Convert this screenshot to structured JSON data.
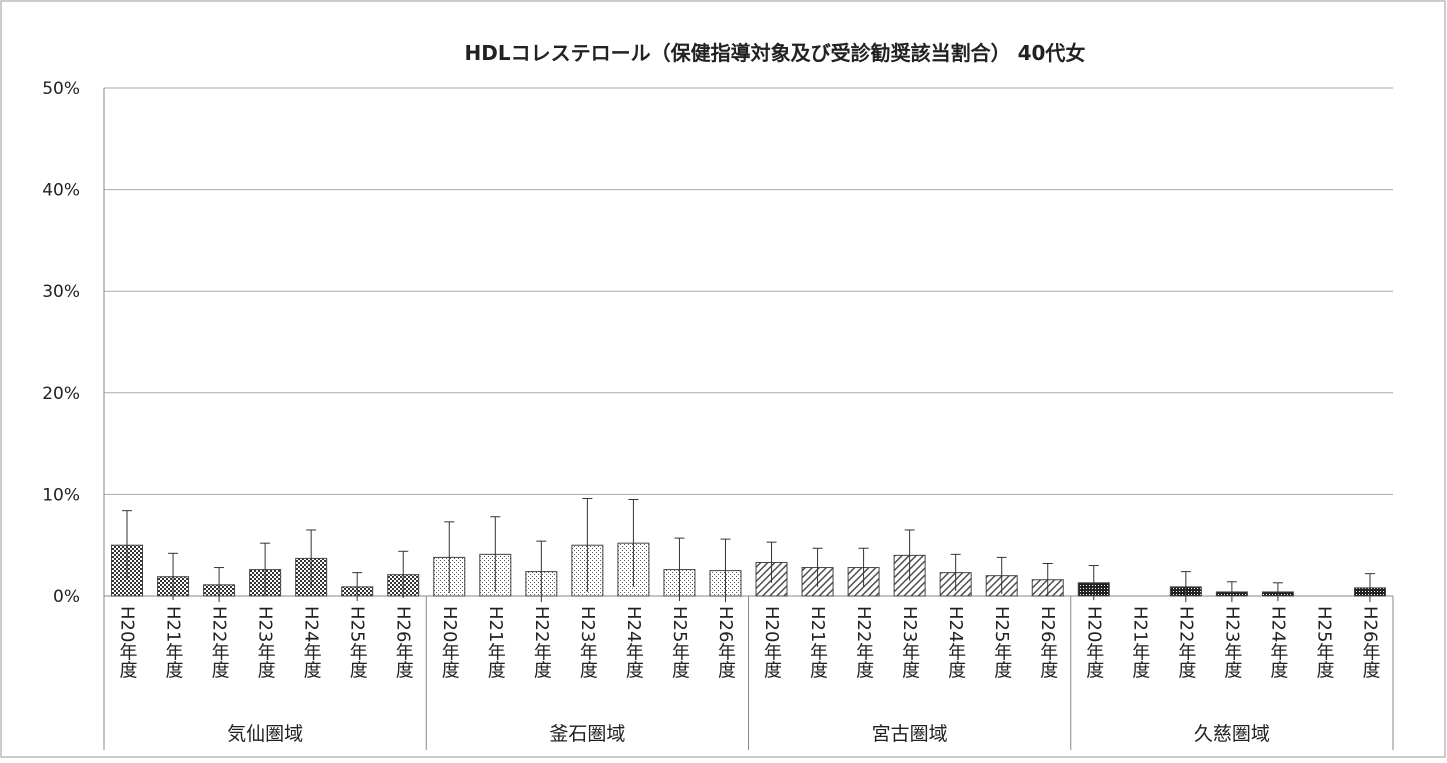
{
  "chart_data": {
    "type": "bar",
    "title": "HDLコレステロール（保健指導対象及び受診勧奨該当割合） 40代女",
    "groups": [
      "気仙圏域",
      "釜石圏域",
      "宮古圏域",
      "久慈圏域"
    ],
    "categories": [
      "H20年度",
      "H21年度",
      "H22年度",
      "H23年度",
      "H24年度",
      "H25年度",
      "H26年度",
      "H20年度",
      "H21年度",
      "H22年度",
      "H23年度",
      "H24年度",
      "H25年度",
      "H26年度",
      "H20年度",
      "H21年度",
      "H22年度",
      "H23年度",
      "H24年度",
      "H25年度",
      "H26年度",
      "H20年度",
      "H21年度",
      "H22年度",
      "H23年度",
      "H24年度",
      "H25年度",
      "H26年度"
    ],
    "values": [
      5.0,
      1.9,
      1.1,
      2.6,
      3.7,
      0.9,
      2.1,
      3.8,
      4.1,
      2.4,
      5.0,
      5.2,
      2.6,
      2.5,
      3.3,
      2.8,
      2.8,
      4.0,
      2.3,
      2.0,
      1.6,
      1.3,
      0,
      0.9,
      0.4,
      0.4,
      0,
      0.8
    ],
    "errors": [
      3.4,
      2.3,
      1.7,
      2.6,
      2.8,
      1.4,
      2.3,
      3.5,
      3.7,
      3.0,
      4.6,
      4.3,
      3.1,
      3.1,
      2.0,
      1.9,
      1.9,
      2.5,
      1.8,
      1.8,
      1.6,
      1.7,
      0,
      1.5,
      1.0,
      0.9,
      0,
      1.4
    ],
    "group_colors": [
      "#777777",
      "#c8c8c8",
      "#9a9a9a",
      "#555555"
    ],
    "ylim": [
      0,
      50
    ],
    "yticks": [
      {
        "value": 0,
        "label": "0%"
      },
      {
        "value": 10,
        "label": "10%"
      },
      {
        "value": 20,
        "label": "20%"
      },
      {
        "value": 30,
        "label": "30%"
      },
      {
        "value": 40,
        "label": "40%"
      },
      {
        "value": 50,
        "label": "50%"
      }
    ],
    "grid": true
  }
}
